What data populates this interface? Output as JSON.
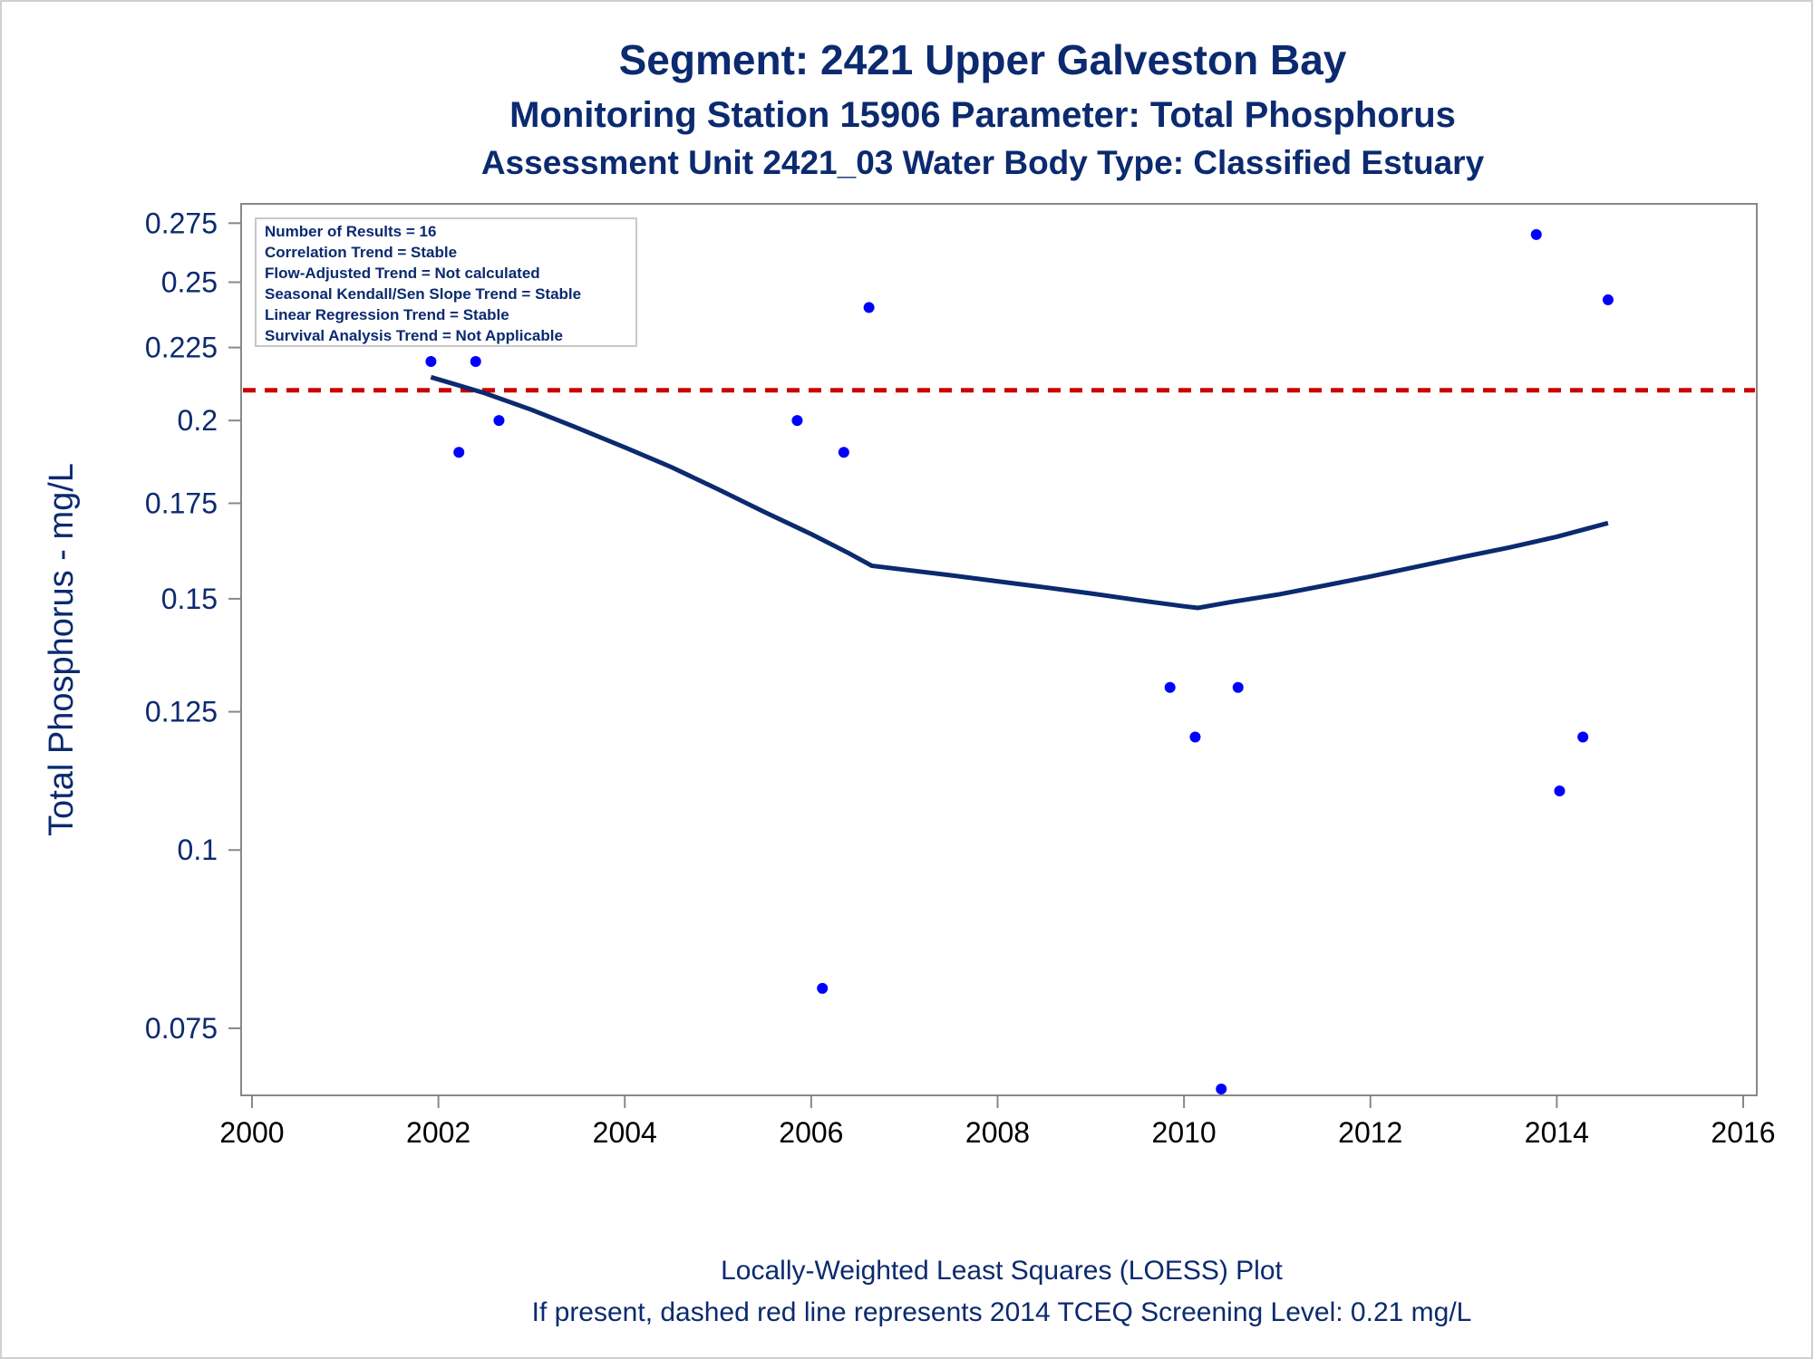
{
  "titles": {
    "line1": "Segment: 2421  Upper Galveston Bay",
    "line2": "Monitoring Station 15906 Parameter: Total Phosphorus",
    "line3": "Assessment Unit 2421_03   Water Body Type: Classified Estuary"
  },
  "footnotes": {
    "line1": "Locally-Weighted Least Squares (LOESS) Plot",
    "line2": "If present, dashed red line represents 2014 TCEQ Screening Level: 0.21 mg/L"
  },
  "stats_box": [
    "Number of Results = 16",
    "Correlation Trend = Stable",
    "Flow-Adjusted Trend = Not calculated",
    "Seasonal Kendall/Sen Slope Trend = Stable",
    "Linear Regression Trend = Stable",
    "Survival Analysis Trend = Not Applicable"
  ],
  "colors": {
    "title": "#0b2a6f",
    "points": "#0000ff",
    "loess": "#0b2a6f",
    "screening": "#cc0000",
    "axis": "#888888"
  },
  "chart_data": {
    "type": "scatter",
    "xlabel": "",
    "ylabel": "Total Phosphorus - mg/L",
    "xlim": [
      2000,
      2016
    ],
    "ylim": [
      0.068,
      0.28
    ],
    "y_scale": "log",
    "x_ticks": [
      2000,
      2002,
      2004,
      2006,
      2008,
      2010,
      2012,
      2014,
      2016
    ],
    "y_ticks": [
      0.075,
      0.1,
      0.125,
      0.15,
      0.175,
      0.2,
      0.225,
      0.25,
      0.275
    ],
    "y_tick_labels": [
      "0.075",
      "0.1",
      "0.125",
      "0.15",
      "0.175",
      "0.2",
      "0.225",
      "0.25",
      "0.275"
    ],
    "screening_level": 0.21,
    "points": [
      {
        "x": 2001.92,
        "y": 0.22
      },
      {
        "x": 2002.22,
        "y": 0.19
      },
      {
        "x": 2002.4,
        "y": 0.22
      },
      {
        "x": 2002.65,
        "y": 0.2
      },
      {
        "x": 2005.85,
        "y": 0.2
      },
      {
        "x": 2006.12,
        "y": 0.08
      },
      {
        "x": 2006.35,
        "y": 0.19
      },
      {
        "x": 2006.62,
        "y": 0.24
      },
      {
        "x": 2009.85,
        "y": 0.13
      },
      {
        "x": 2010.12,
        "y": 0.12
      },
      {
        "x": 2010.4,
        "y": 0.068
      },
      {
        "x": 2010.58,
        "y": 0.13
      },
      {
        "x": 2013.78,
        "y": 0.27
      },
      {
        "x": 2014.03,
        "y": 0.11
      },
      {
        "x": 2014.28,
        "y": 0.12
      },
      {
        "x": 2014.55,
        "y": 0.243
      }
    ],
    "loess": [
      {
        "x": 2001.92,
        "y": 0.2145
      },
      {
        "x": 2002.5,
        "y": 0.209
      },
      {
        "x": 2003.0,
        "y": 0.2035
      },
      {
        "x": 2003.5,
        "y": 0.1975
      },
      {
        "x": 2004.0,
        "y": 0.1915
      },
      {
        "x": 2004.5,
        "y": 0.1855
      },
      {
        "x": 2005.0,
        "y": 0.179
      },
      {
        "x": 2005.5,
        "y": 0.1725
      },
      {
        "x": 2006.0,
        "y": 0.1665
      },
      {
        "x": 2006.4,
        "y": 0.1615
      },
      {
        "x": 2006.65,
        "y": 0.1582
      },
      {
        "x": 2007.0,
        "y": 0.1572
      },
      {
        "x": 2007.5,
        "y": 0.1558
      },
      {
        "x": 2008.0,
        "y": 0.1543
      },
      {
        "x": 2008.5,
        "y": 0.1528
      },
      {
        "x": 2009.0,
        "y": 0.1513
      },
      {
        "x": 2009.5,
        "y": 0.1497
      },
      {
        "x": 2010.0,
        "y": 0.1482
      },
      {
        "x": 2010.15,
        "y": 0.1478
      },
      {
        "x": 2010.5,
        "y": 0.1492
      },
      {
        "x": 2011.0,
        "y": 0.151
      },
      {
        "x": 2011.5,
        "y": 0.1532
      },
      {
        "x": 2012.0,
        "y": 0.1555
      },
      {
        "x": 2012.5,
        "y": 0.158
      },
      {
        "x": 2013.0,
        "y": 0.1605
      },
      {
        "x": 2013.5,
        "y": 0.163
      },
      {
        "x": 2014.0,
        "y": 0.1658
      },
      {
        "x": 2014.55,
        "y": 0.1695
      }
    ]
  }
}
